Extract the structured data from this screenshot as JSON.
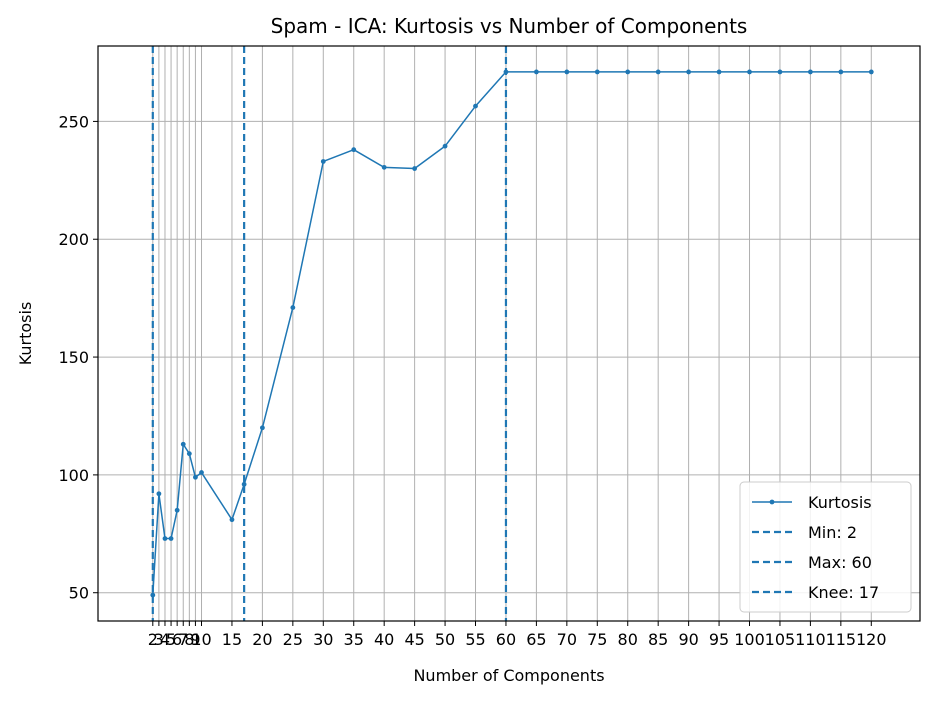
{
  "chart_data": {
    "type": "line",
    "title": "Spam - ICA: Kurtosis vs Number of Components",
    "xlabel": "Number of Components",
    "ylabel": "Kurtosis",
    "xlim": [
      -7,
      128
    ],
    "ylim": [
      38,
      282
    ],
    "grid": true,
    "legend_position": "lower-right",
    "line_color": "#1f77b4",
    "x_ticks": [
      2,
      3,
      4,
      5,
      6,
      7,
      8,
      9,
      10,
      15,
      20,
      25,
      30,
      35,
      40,
      45,
      50,
      55,
      60,
      65,
      70,
      75,
      80,
      85,
      90,
      95,
      100,
      105,
      110,
      115,
      120
    ],
    "y_ticks": [
      50,
      100,
      150,
      200,
      250
    ],
    "series": [
      {
        "name": "Kurtosis",
        "x": [
          2,
          3,
          4,
          5,
          6,
          7,
          8,
          9,
          10,
          15,
          17,
          20,
          25,
          30,
          35,
          40,
          45,
          50,
          55,
          60,
          65,
          70,
          75,
          80,
          85,
          90,
          95,
          100,
          105,
          110,
          115,
          120
        ],
        "y": [
          49,
          92,
          73,
          73,
          85,
          113,
          109,
          99,
          101,
          81,
          96,
          120,
          171,
          233,
          238,
          230.5,
          230,
          239.5,
          256.5,
          271,
          271,
          271,
          271,
          271,
          271,
          271,
          271,
          271,
          271,
          271,
          271,
          271
        ]
      }
    ],
    "vlines": [
      {
        "name": "Min: 2",
        "x": 2
      },
      {
        "name": "Max: 60",
        "x": 60
      },
      {
        "name": "Knee: 17",
        "x": 17
      }
    ]
  }
}
